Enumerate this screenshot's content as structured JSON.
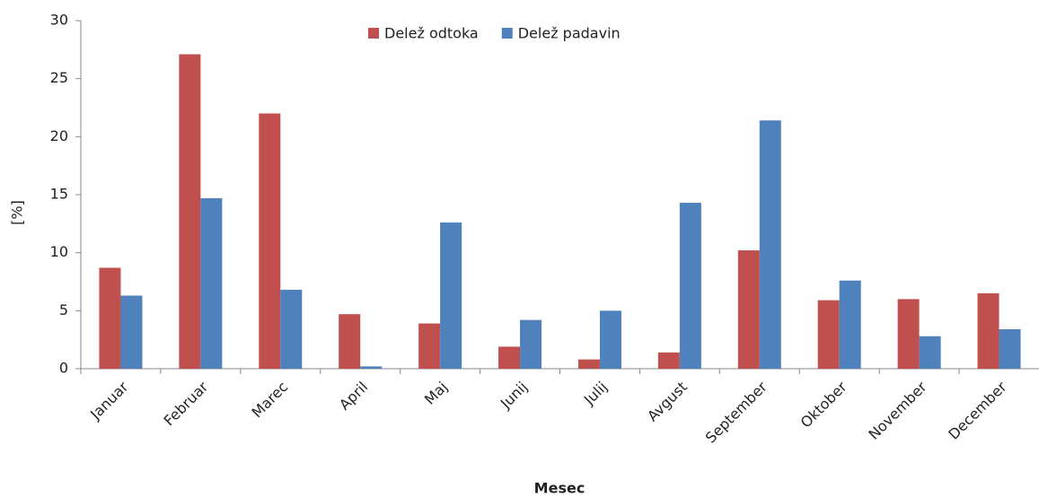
{
  "chart_data": {
    "type": "bar",
    "x_label": "Mesec",
    "y_label": "[%]",
    "categories": [
      "Januar",
      "Februar",
      "Marec",
      "April",
      "Maj",
      "Junij",
      "Julij",
      "Avgust",
      "September",
      "Oktober",
      "November",
      "December"
    ],
    "series": [
      {
        "name": "Delež odtoka",
        "color": "#c0504d",
        "values": [
          8.7,
          27.1,
          22.0,
          4.7,
          3.9,
          1.9,
          0.8,
          1.4,
          10.2,
          5.9,
          6.0,
          6.5
        ]
      },
      {
        "name": "Delež padavin",
        "color": "#4f81bd",
        "values": [
          6.3,
          14.7,
          6.8,
          0.2,
          12.6,
          4.2,
          5.0,
          14.3,
          21.4,
          7.6,
          2.8,
          3.4
        ]
      }
    ],
    "ylim": [
      0,
      30
    ],
    "yticks": [
      0,
      5,
      10,
      15,
      20,
      25,
      30
    ],
    "grid": false,
    "legend": "top"
  }
}
